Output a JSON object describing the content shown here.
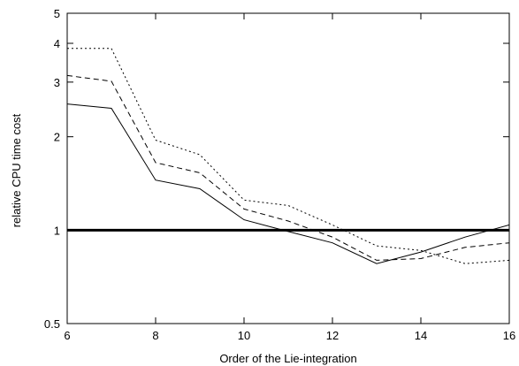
{
  "chart_data": {
    "type": "line",
    "title": "",
    "xlabel": "Order of the Lie-integration",
    "ylabel": "relative CPU time cost",
    "xlim": [
      6,
      16
    ],
    "ylim": [
      0.5,
      5
    ],
    "yscale": "log",
    "grid": false,
    "legend": "none",
    "x_ticks": [
      "6",
      "8",
      "10",
      "12",
      "14",
      "16"
    ],
    "y_ticks": [
      "0.5",
      "1",
      "2",
      "3",
      "4",
      "5"
    ],
    "x": [
      6,
      7,
      8,
      9,
      10,
      11,
      12,
      13,
      14,
      15,
      16
    ],
    "series": [
      {
        "style": "solid",
        "values": [
          2.55,
          2.47,
          1.45,
          1.36,
          1.08,
          0.99,
          0.91,
          0.78,
          0.85,
          0.95,
          1.04
        ]
      },
      {
        "style": "dashed",
        "values": [
          3.15,
          3.02,
          1.65,
          1.53,
          1.17,
          1.07,
          0.95,
          0.8,
          0.81,
          0.88,
          0.91
        ]
      },
      {
        "style": "dotted",
        "values": [
          3.85,
          3.85,
          1.95,
          1.75,
          1.25,
          1.2,
          1.04,
          0.89,
          0.86,
          0.78,
          0.8
        ]
      }
    ],
    "reference_line": {
      "y": 1,
      "style": "thick-solid"
    }
  }
}
